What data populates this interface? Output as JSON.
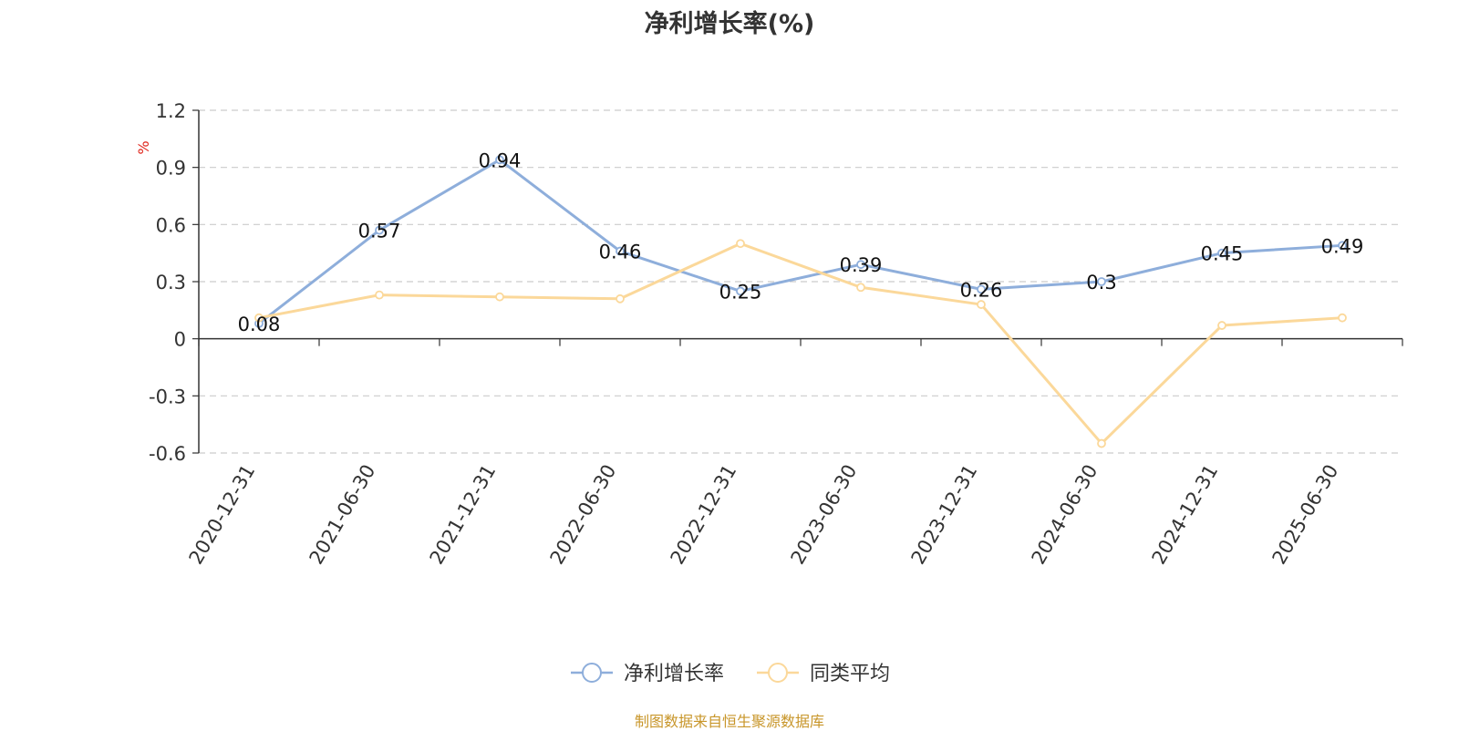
{
  "chart_data": {
    "type": "line",
    "title": "净利增长率(%)",
    "ylabel": "%",
    "xlabel": "",
    "categories": [
      "2020-12-31",
      "2021-06-30",
      "2021-12-31",
      "2022-06-30",
      "2022-12-31",
      "2023-06-30",
      "2023-12-31",
      "2024-06-30",
      "2024-12-31",
      "2025-06-30"
    ],
    "ylim": [
      -0.6,
      1.2
    ],
    "yticks": [
      "1.2",
      "0.9",
      "0.6",
      "0.3",
      "0",
      "-0.3",
      "-0.6"
    ],
    "grid": true,
    "legend_position": "bottom-center",
    "series": [
      {
        "name": "净利增长率",
        "color": "#8eaedb",
        "values": [
          0.08,
          0.57,
          0.94,
          0.46,
          0.25,
          0.39,
          0.26,
          0.3,
          0.45,
          0.49
        ],
        "labels": [
          "0.08",
          "0.57",
          "0.94",
          "0.46",
          "0.25",
          "0.39",
          "0.26",
          "0.3",
          "0.45",
          "0.49"
        ]
      },
      {
        "name": "同类平均",
        "color": "#fbd89a",
        "values": [
          0.11,
          0.23,
          0.22,
          0.21,
          0.5,
          0.27,
          0.18,
          -0.55,
          0.07,
          0.11
        ]
      }
    ],
    "source": "制图数据来自恒生聚源数据库",
    "colors": {
      "axis": "#333333",
      "grid": "#cccccc",
      "ylabel": "#e0251b",
      "source": "#c8962a"
    }
  }
}
